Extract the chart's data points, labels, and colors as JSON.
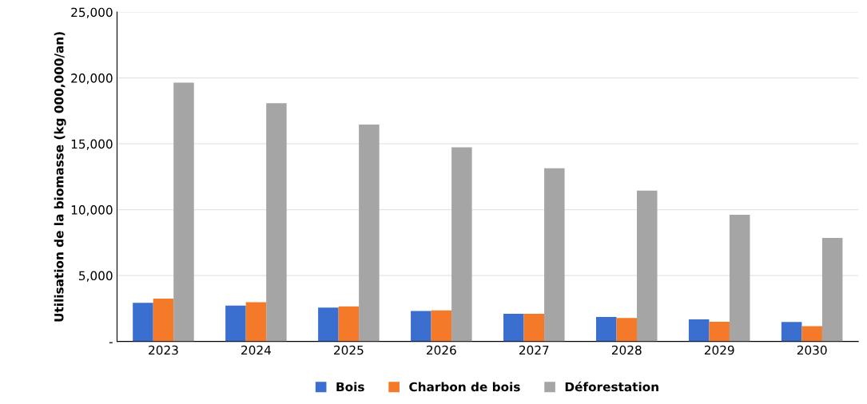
{
  "chart_data": {
    "type": "bar",
    "ylabel": "Utilisation de la biomasse (kg 000,000/an)",
    "categories": [
      "2023",
      "2024",
      "2025",
      "2026",
      "2027",
      "2028",
      "2029",
      "2030"
    ],
    "series": [
      {
        "name": "Bois",
        "color": "#3a6fd0",
        "values": [
          2930,
          2720,
          2560,
          2310,
          2100,
          1860,
          1670,
          1470
        ]
      },
      {
        "name": "Charbon de bois",
        "color": "#f47a2a",
        "values": [
          3240,
          2970,
          2660,
          2350,
          2100,
          1780,
          1490,
          1160
        ]
      },
      {
        "name": "Déforestation",
        "color": "#a5a5a5",
        "values": [
          19650,
          18080,
          16470,
          14740,
          13150,
          11440,
          9620,
          7860
        ]
      }
    ],
    "ylim": [
      0,
      25000
    ],
    "yticks": [
      {
        "value": 0,
        "label": "-"
      },
      {
        "value": 5000,
        "label": "5,000"
      },
      {
        "value": 10000,
        "label": "10,000"
      },
      {
        "value": 15000,
        "label": "15,000"
      },
      {
        "value": 20000,
        "label": "20,000"
      },
      {
        "value": 25000,
        "label": "25,000"
      }
    ],
    "grid": "y",
    "legend": "bottom"
  }
}
